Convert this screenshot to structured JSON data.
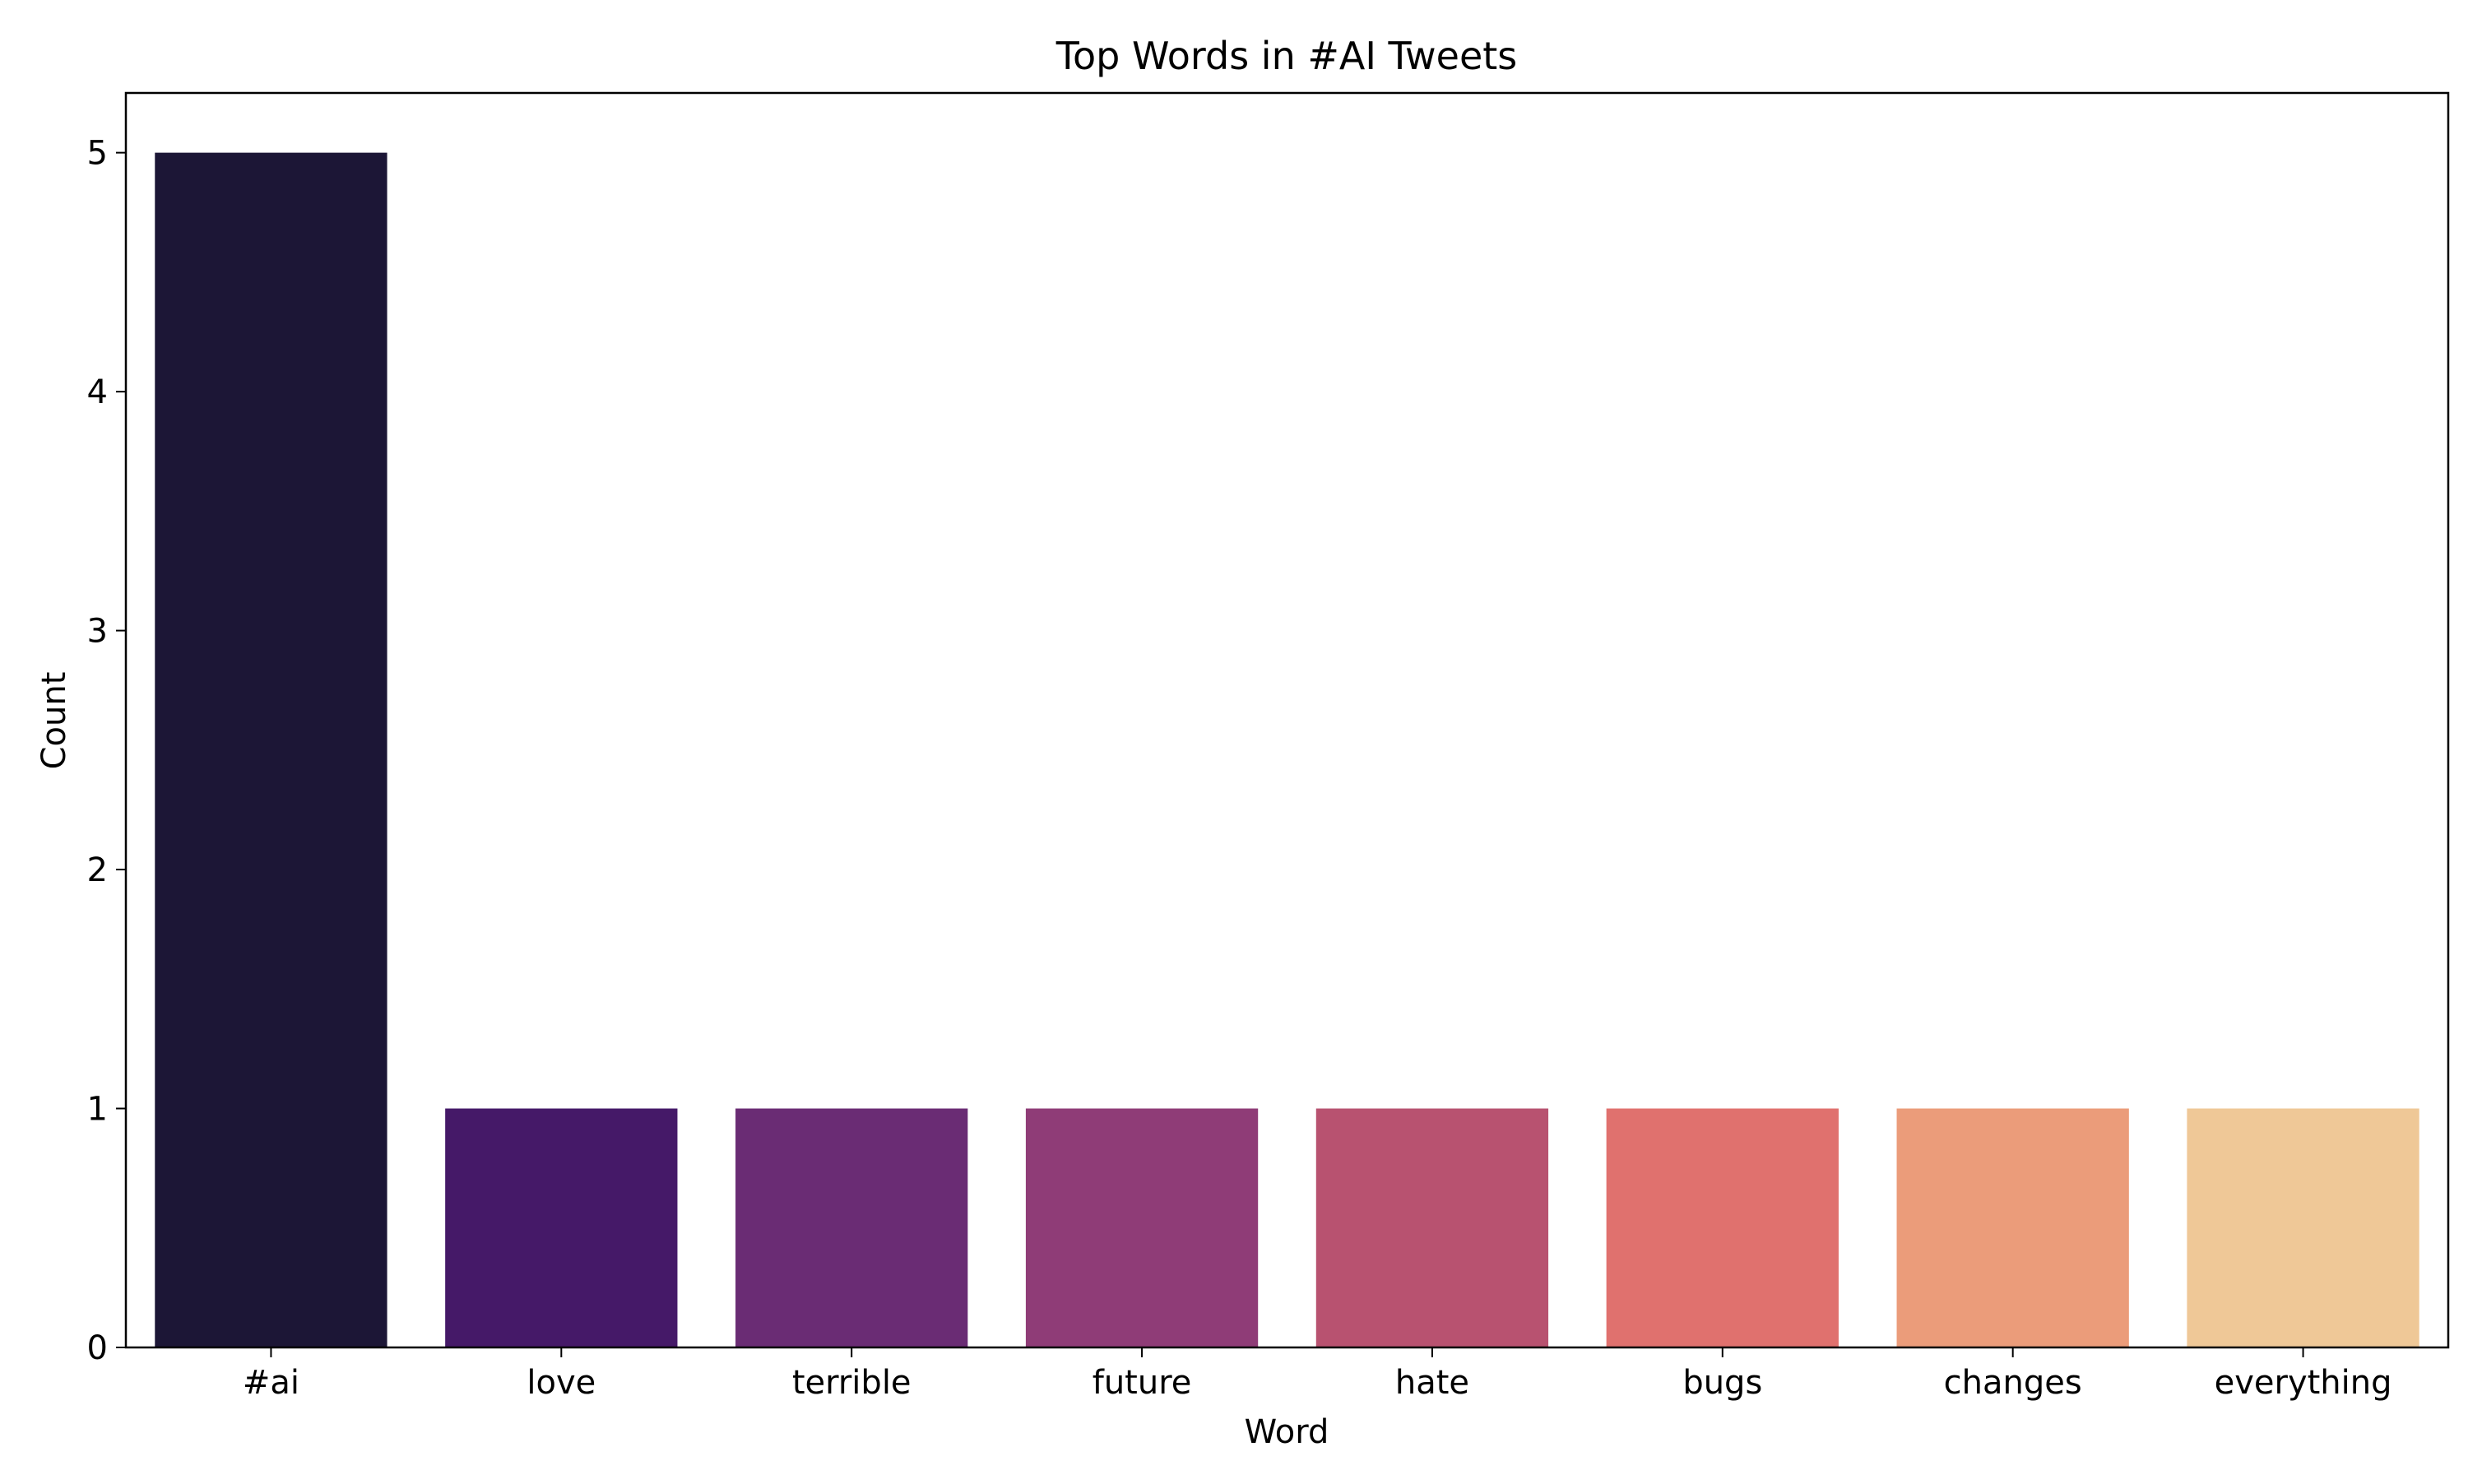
{
  "chart_data": {
    "type": "bar",
    "title": "Top Words in #AI Tweets",
    "xlabel": "Word",
    "ylabel": "Count",
    "categories": [
      "#ai",
      "love",
      "terrible",
      "future",
      "hate",
      "bugs",
      "changes",
      "everything"
    ],
    "values": [
      5,
      1,
      1,
      1,
      1,
      1,
      1,
      1
    ],
    "colors": [
      "#1c1636",
      "#451968",
      "#6a2c74",
      "#8f3c77",
      "#b85270",
      "#e0716e",
      "#eb9c7a",
      "#efc897"
    ],
    "ylim": [
      0,
      5.25
    ],
    "yticks": [
      0,
      1,
      2,
      3,
      4,
      5
    ],
    "grid": false,
    "legend": false
  }
}
